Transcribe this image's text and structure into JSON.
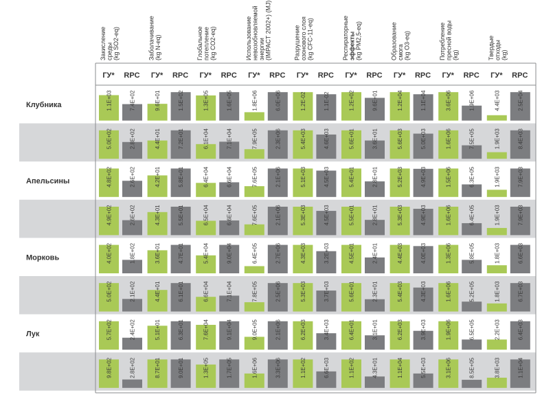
{
  "colors": {
    "gu": "#a9c956",
    "rpc": "#7c7d80",
    "row_band": "#d6d7d9",
    "frame": "#8a8b8e",
    "text": "#333333"
  },
  "chart_data": {
    "type": "bar",
    "title": "",
    "series": [
      {
        "key": "gu",
        "name": "ГУ*"
      },
      {
        "key": "rpc",
        "name": "RPC"
      }
    ],
    "columns": [
      {
        "lines": [
          "Закисление",
          "среды",
          "(kg SO2-eq)"
        ]
      },
      {
        "lines": [
          "Заболачивание",
          "(kg N-eq)"
        ]
      },
      {
        "lines": [
          "Глобальное",
          "потепление",
          "(kg CO2-eq)"
        ]
      },
      {
        "lines": [
          "Использование",
          "невозобновляемой",
          "энергии",
          "(IMPACT 2002+) (MJ)"
        ]
      },
      {
        "lines": [
          "Разрушение",
          "озонового слоя",
          "(kg CFC-11-eq)"
        ]
      },
      {
        "lines": [
          "Респираторные",
          "эффекты",
          "(kg PM2,5-eq)"
        ]
      },
      {
        "lines": [
          "Образование",
          "смога",
          "(kg O3-eq)"
        ]
      },
      {
        "lines": [
          "Потребление",
          "пресной воды",
          "(kg)"
        ]
      },
      {
        "lines": [
          "Твердые",
          "отходы",
          "(kg)"
        ]
      }
    ],
    "rows": [
      {
        "product": "Клубника",
        "gu": [
          "1.1E+03",
          "9.6E+01",
          "1.3E+05",
          "1.8E+06",
          "1.2E-02",
          "1.2E+02",
          "1.2E+04",
          "3.6E+06",
          "4.4E+03"
        ],
        "rpc": [
          "7.4E+02",
          "1.5E+02",
          "1.6E+05",
          "6.0E+06",
          "1.1E-02",
          "9.6E+01",
          "1.1E+04",
          "1.9E+06",
          "2.5E+04"
        ],
        "gu_rel": [
          0.85,
          0.56,
          0.84,
          0.28,
          0.95,
          0.95,
          0.95,
          0.95,
          0.18
        ],
        "rpc_rel": [
          0.55,
          0.95,
          0.95,
          0.95,
          0.88,
          0.76,
          0.88,
          0.5,
          0.95
        ]
      },
      {
        "product": "",
        "gu": [
          "5.0E+02",
          "4.4E+01",
          "6.1E+04",
          "7.9E+05",
          "5.4E+03",
          "5.6E+01",
          "5.6E+03",
          "1.6E+06",
          "1.9E+03"
        ],
        "rpc": [
          "2.8E+02",
          "7.2E+01",
          "7.1E+04",
          "2.3E+06",
          "4.6E+03",
          "3.6E+01",
          "5.0E+03",
          "7.5E+05",
          "8.4E+03"
        ],
        "gu_rel": [
          0.95,
          0.61,
          0.49,
          0.32,
          0.95,
          0.95,
          0.95,
          0.95,
          0.22
        ],
        "rpc_rel": [
          0.56,
          0.95,
          0.57,
          0.95,
          0.81,
          0.61,
          0.84,
          0.45,
          0.95
        ]
      },
      {
        "product": "Апельсины",
        "gu": [
          "4.8E+02",
          "4.2E+01",
          "6.4E+04",
          "7.6E+05",
          "5.1E+03",
          "5.4E+01",
          "5.2E+03",
          "1.5E+06",
          "1.9E+03"
        ],
        "rpc": [
          "2.6E+02",
          "5.8E+01",
          "6.6E+04",
          "2.1E+06",
          "4.5E+03",
          "2.8E+01",
          "4.9E+03",
          "6.3E+05",
          "7.9E+03"
        ],
        "gu_rel": [
          0.95,
          0.72,
          0.47,
          0.36,
          0.95,
          0.95,
          0.95,
          0.95,
          0.24
        ],
        "rpc_rel": [
          0.54,
          0.95,
          0.49,
          0.95,
          0.88,
          0.52,
          0.94,
          0.42,
          0.95
        ]
      },
      {
        "product": "",
        "gu": [
          "4.9E+02",
          "4.3E+01",
          "6.5E+04",
          "7.6E+05",
          "5.3E+03",
          "5.5E+01",
          "5.3E+03",
          "1.6E+06",
          "1.9E+03"
        ],
        "rpc": [
          "2.6E+02",
          "5.5E+01",
          "6.6E+04",
          "2.1E+06",
          "4.5E+03",
          "2.8E+01",
          "4.9E+03",
          "6.4E+05",
          "7.9E+03"
        ],
        "gu_rel": [
          0.95,
          0.77,
          0.48,
          0.36,
          0.95,
          0.95,
          0.95,
          0.95,
          0.24
        ],
        "rpc_rel": [
          0.5,
          0.95,
          0.49,
          0.95,
          0.81,
          0.51,
          0.88,
          0.4,
          0.95
        ]
      },
      {
        "product": "Морковь",
        "gu": [
          "4.0E+02",
          "3.6E+01",
          "5.4E+04",
          "6.4E+05",
          "4.3E+03",
          "4.5E+01",
          "4.4E+03",
          "1.3E+06",
          "1.8E+03"
        ],
        "rpc": [
          "1.8E+02",
          "4.7E+01",
          "9.0E+04",
          "2.7E+06",
          "3.2E+03",
          "2.4E+01",
          "4.0E+03",
          "5.8E+05",
          "6.6E+03"
        ],
        "gu_rel": [
          0.95,
          0.77,
          0.6,
          0.24,
          0.95,
          0.95,
          0.95,
          0.95,
          0.27
        ],
        "rpc_rel": [
          0.45,
          0.95,
          0.95,
          0.95,
          0.74,
          0.53,
          0.91,
          0.45,
          0.95
        ]
      },
      {
        "product": "",
        "gu": [
          "5.0E+02",
          "4.4E+01",
          "6.6E+04",
          "7.8E+05",
          "5.3E+03",
          "5.6E+01",
          "5.4E+03",
          "1.6E+06",
          "1.8E+03"
        ],
        "rpc": [
          "2.1E+02",
          "6.1E+01",
          "7.1E+04",
          "2.5E+06",
          "3.7E+03",
          "2.3E+01",
          "4.3E+03",
          "5.2E+05",
          "6.7E+03"
        ],
        "gu_rel": [
          0.95,
          0.72,
          0.49,
          0.31,
          0.95,
          0.95,
          0.95,
          0.95,
          0.27
        ],
        "rpc_rel": [
          0.42,
          0.95,
          0.53,
          0.95,
          0.7,
          0.41,
          0.8,
          0.33,
          0.95
        ]
      },
      {
        "product": "Лук",
        "gu": [
          "5.7E+02",
          "5.1E+01",
          "7.6E+04",
          "9.0E+05",
          "6.2E+03",
          "6.4E+01",
          "6.2E+03",
          "1.9E+06",
          "2.2E+03"
        ],
        "rpc": [
          "2.4E+02",
          "6.3E+01",
          "9.1E+04",
          "2.1E+06",
          "3.4E+03",
          "3.1E+01",
          "3.9E+03",
          "6.5E+05",
          "6.4E+03"
        ],
        "gu_rel": [
          0.95,
          0.8,
          0.83,
          0.43,
          0.95,
          0.95,
          0.95,
          0.95,
          0.34
        ],
        "rpc_rel": [
          0.4,
          0.95,
          0.95,
          0.95,
          0.55,
          0.48,
          0.63,
          0.34,
          0.95
        ]
      },
      {
        "product": "",
        "gu": [
          "9.8E+02",
          "8.7E+01",
          "1.3E+05",
          "1.6E+06",
          "1.1E+02",
          "1.1E+02",
          "1.1E+04",
          "3.1E+06",
          "3.8E+03"
        ],
        "rpc": [
          "2.8E+02",
          "9.0E+01",
          "1.7E+05",
          "3.3E+06",
          "6.6E+03",
          "4.3E+01",
          "5.5E+03",
          "8.5E+05",
          "1.1E+04"
        ],
        "gu_rel": [
          0.95,
          0.95,
          0.78,
          0.48,
          0.95,
          0.95,
          0.95,
          0.95,
          0.34
        ],
        "rpc_rel": [
          0.28,
          0.95,
          0.95,
          0.95,
          0.55,
          0.38,
          0.48,
          0.27,
          0.95
        ]
      }
    ]
  }
}
